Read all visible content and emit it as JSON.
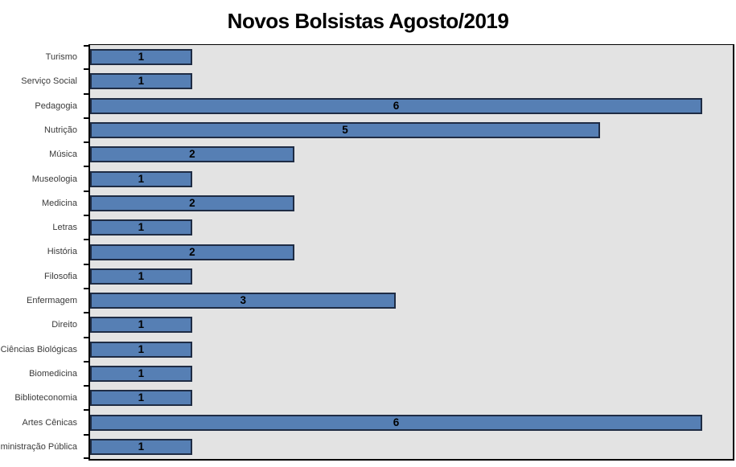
{
  "title": "Novos Bolsistas Agosto/2019",
  "colors": {
    "bar_fill": "#567fb4",
    "bar_border": "#1f2c44",
    "plot_background": "#e3e3e3",
    "axis_line": "#000000",
    "category_label_text": "#3a3a3a",
    "data_label_text": "#000000",
    "title_text": "#000000"
  },
  "chart_data": {
    "type": "bar",
    "orientation": "horizontal",
    "title": "Novos Bolsistas Agosto/2019",
    "categories": [
      "Turismo",
      "Serviço Social",
      "Pedagogia",
      "Nutrição",
      "Música",
      "Museologia",
      "Medicina",
      "Letras",
      "História",
      "Filosofia",
      "Enfermagem",
      "Direito",
      "Ciências Biológicas",
      "Biomedicina",
      "Biblioteconomia",
      "Artes Cênicas",
      "Administração Pública"
    ],
    "values": [
      1,
      1,
      6,
      5,
      2,
      1,
      2,
      1,
      2,
      1,
      3,
      1,
      1,
      1,
      1,
      6,
      1
    ],
    "data_labels": "inside-center",
    "xlabel": "",
    "ylabel": "",
    "xlim": [
      0,
      6.3
    ],
    "grid": false,
    "legend": false,
    "tick_marks": "outside-category-boundaries"
  }
}
